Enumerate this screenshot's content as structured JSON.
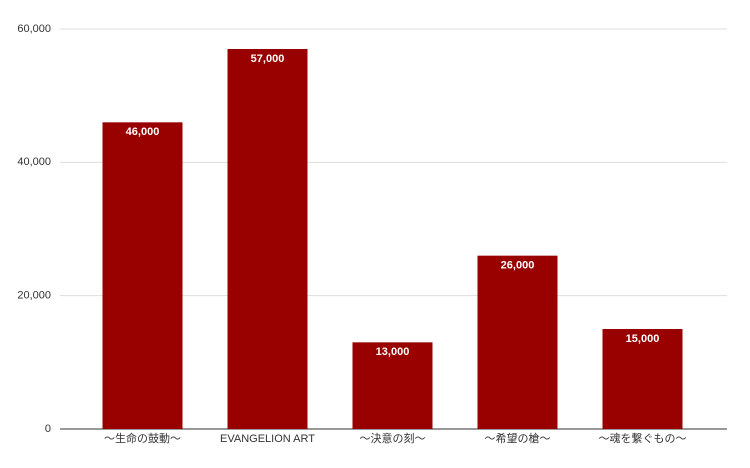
{
  "chart_data": {
    "type": "bar",
    "categories": [
      "～生命の鼓動～",
      "EVANGELION ART",
      "～決意の刻～",
      "～希望の槍～",
      "～魂を繋ぐもの～"
    ],
    "values": [
      46000,
      57000,
      13000,
      26000,
      15000
    ],
    "value_labels": [
      "46,000",
      "57,000",
      "13,000",
      "26,000",
      "15,000"
    ],
    "color": "#990000",
    "ylim": [
      0,
      60000
    ],
    "yticks": [
      0,
      {
        "value": 20000,
        "label": "20,000"
      },
      {
        "value": 40000,
        "label": "40,000"
      },
      {
        "value": 60000,
        "label": "60,000"
      }
    ],
    "grid": true
  }
}
